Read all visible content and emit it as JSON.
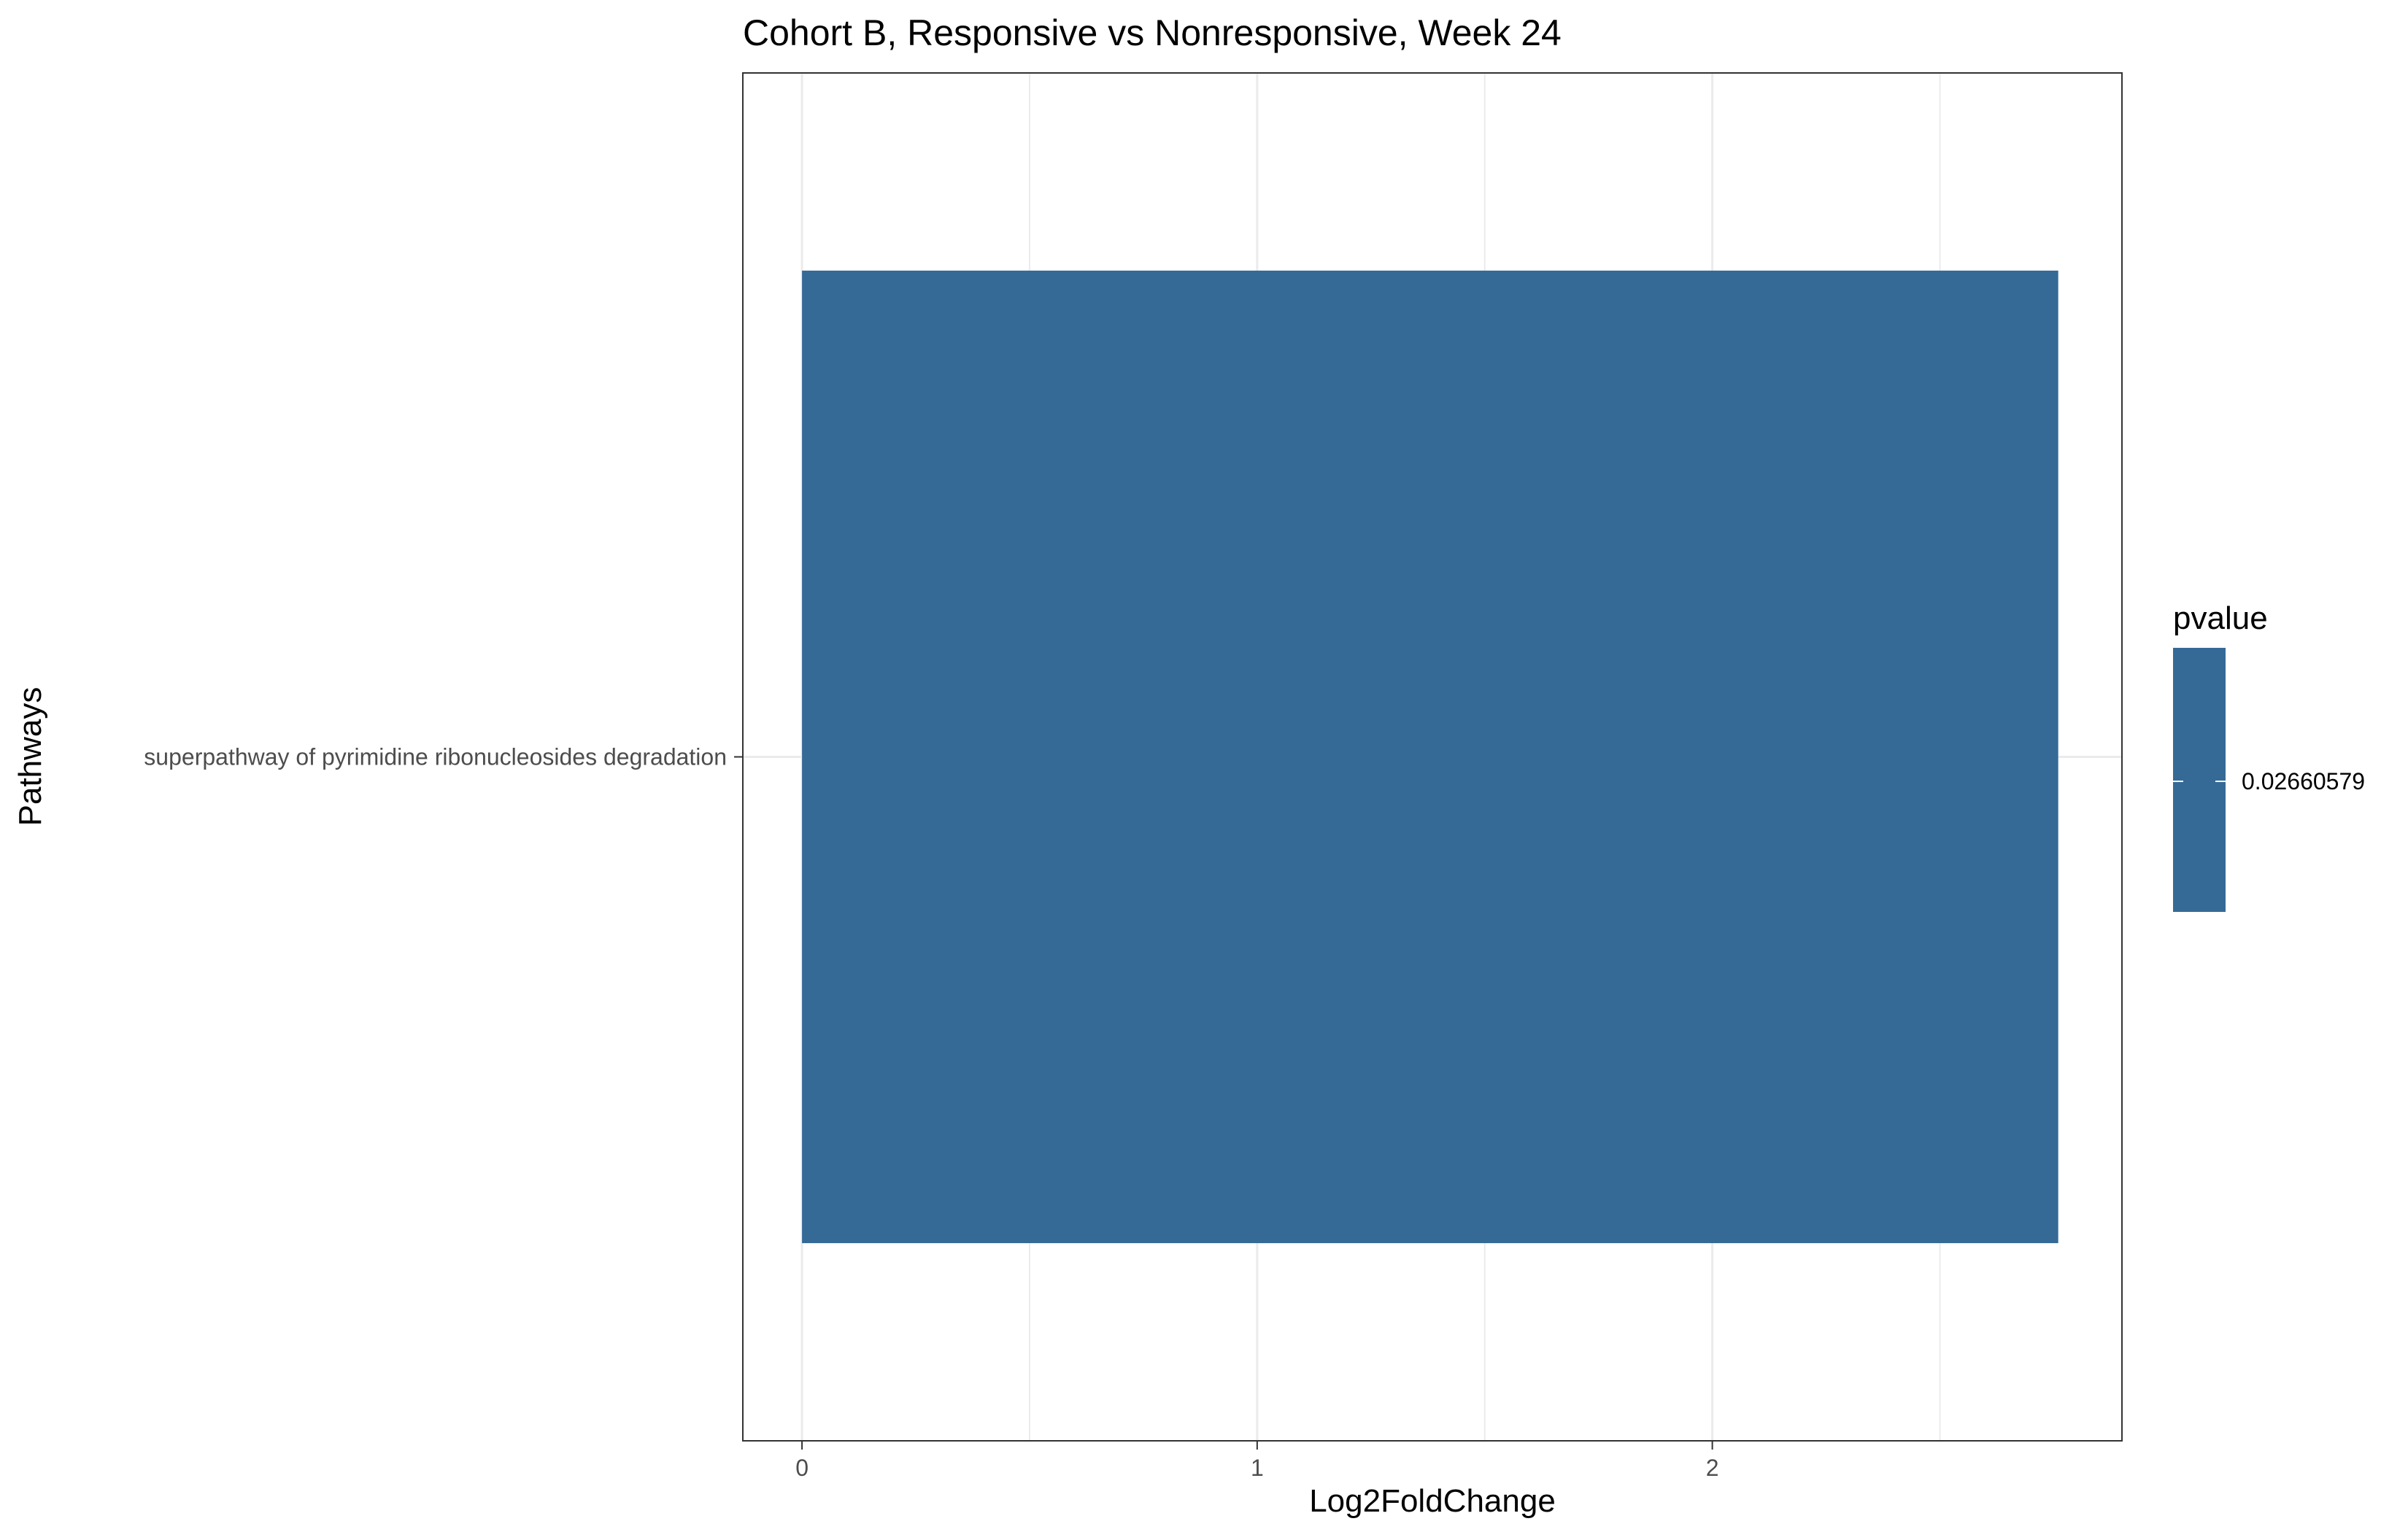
{
  "chart_data": {
    "type": "bar",
    "orientation": "horizontal",
    "title": "Cohort B, Responsive vs Nonresponsive, Week 24",
    "xlabel": "Log2FoldChange",
    "ylabel": "Pathways",
    "xlim": [
      -0.13,
      2.9
    ],
    "x_ticks": [
      0,
      1,
      2
    ],
    "categories": [
      "superpathway of pyrimidine ribonucleosides degradation"
    ],
    "series": [
      {
        "values": [
          2.76
        ],
        "pvalues": [
          0.02660579
        ],
        "color": "#356a96"
      }
    ],
    "grid": true,
    "legend": {
      "title": "pvalue",
      "placement": "right",
      "labels": [
        "0.02660579"
      ],
      "color": "#356a96"
    }
  }
}
